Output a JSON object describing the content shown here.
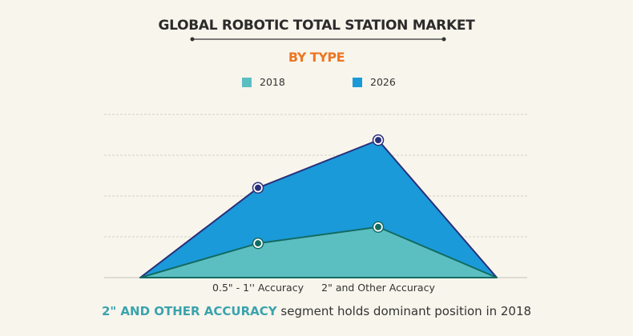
{
  "chart_data": {
    "type": "area",
    "title": "GLOBAL ROBOTIC TOTAL STATION MARKET",
    "subtitle": "BY TYPE",
    "categories": [
      "",
      "0.5\" - 1'' Accuracy",
      "2\" and Other Accuracy",
      ""
    ],
    "series": [
      {
        "name": "2026",
        "values": [
          0,
          2.2,
          3.37,
          0
        ],
        "color": "#1a9ad8",
        "line_color": "#2a2f7a"
      },
      {
        "name": "2018",
        "values": [
          0,
          0.84,
          1.24,
          0
        ],
        "color": "#5bbfc2",
        "line_color": "#136b62"
      }
    ],
    "ylim": [
      0,
      4
    ],
    "grid": true,
    "legend": "top-center",
    "xlabel": "",
    "ylabel": ""
  },
  "caption": {
    "highlight": "2\" AND OTHER ACCURACY",
    "rest": " segment holds dominant position in 2018"
  }
}
